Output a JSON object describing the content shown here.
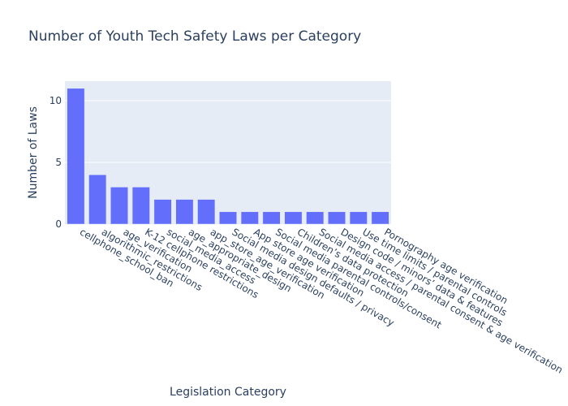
{
  "chart_data": {
    "type": "bar",
    "title": "Number of Youth Tech Safety Laws per Category",
    "xlabel": "Legislation Category",
    "ylabel": "Number of Laws",
    "ylim": [
      0,
      11.58
    ],
    "yticks": [
      0,
      5,
      10
    ],
    "grid": true,
    "bar_color": "#636efa",
    "plot_bg": "#e5ecf6",
    "categories": [
      "cellphone_school_ban",
      "algorithmic_restrictions",
      "age_verification",
      "K-12 cellphone restrictions",
      "social_media_access",
      "age_appropriate_design",
      "app_store_age_verification",
      "Social media design defaults / privacy",
      "App store age verification",
      "Social media parental controls/consent",
      "Children’s data protection",
      "Social media access / parental consent & age verification",
      "Design code / minors’ data & features",
      "Use time limits / parental controls",
      "Pornography age verification"
    ],
    "values": [
      11,
      4,
      3,
      3,
      2,
      2,
      2,
      1,
      1,
      1,
      1,
      1,
      1,
      1,
      1
    ]
  }
}
